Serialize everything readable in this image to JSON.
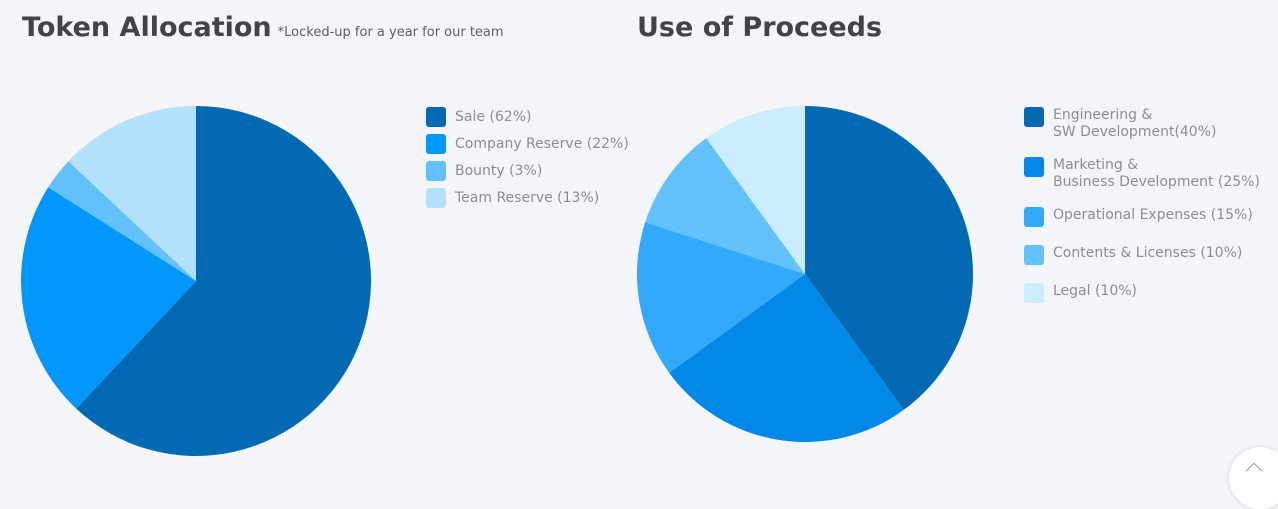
{
  "chart_data": [
    {
      "type": "pie",
      "title": "Token Allocation",
      "subtitle": "*Locked-up for a year for our team",
      "labels": [
        "Sale",
        "Company Reserve",
        "Bounty",
        "Team Reserve"
      ],
      "legend_labels": [
        "Sale (62%)",
        "Company Reserve (22%)",
        "Bounty (3%)",
        "Team Reserve (13%)"
      ],
      "values": [
        62,
        22,
        3,
        13
      ],
      "colors": [
        "#0369b3",
        "#0297fc",
        "#62c1fb",
        "#b3e0fd"
      ],
      "legend": "right"
    },
    {
      "type": "pie",
      "title": "Use of Proceeds",
      "labels": [
        "Engineering & SW Development",
        "Marketing & Business Development",
        "Operational Expenses",
        "Contents & Licenses",
        "Legal"
      ],
      "legend_labels": [
        "Engineering &\nSW Development(40%)",
        "Marketing &\nBusiness Development (25%)",
        "Operational Expenses (15%)",
        "Contents & Licenses (10%)",
        "Legal (10%)"
      ],
      "values": [
        40,
        25,
        15,
        10,
        10
      ],
      "colors": [
        "#0369b3",
        "#0288e6",
        "#33a9fb",
        "#62c1fb",
        "#cbecfe"
      ],
      "legend": "right"
    }
  ],
  "controls": {
    "scroll_top_icon": "chevron-up-icon"
  }
}
